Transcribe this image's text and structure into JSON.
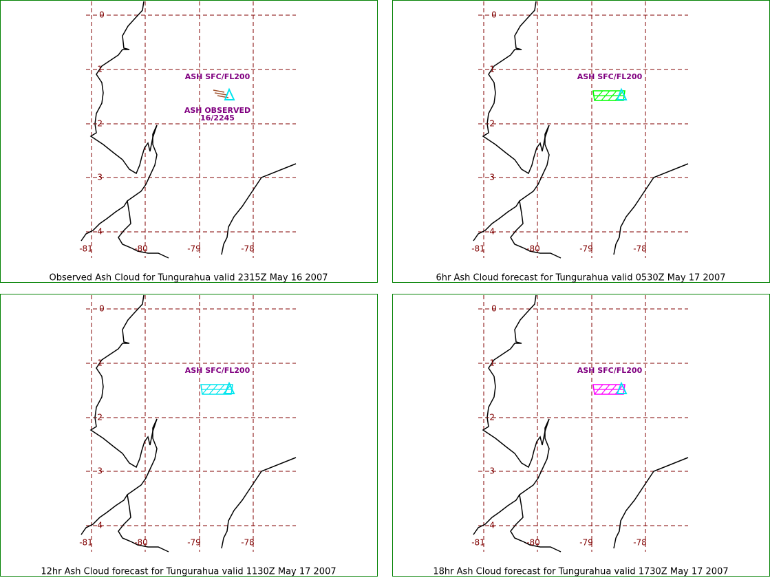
{
  "panels": [
    {
      "caption": "Observed Ash Cloud for Tungurahua valid 2315Z May 16 2007",
      "lat_labels": [
        "0",
        "-1",
        "-2",
        "-3",
        "-4"
      ],
      "lon_labels": [
        "-81",
        "-80",
        "-79",
        "-78"
      ],
      "annotations": [
        "ASH SFC/FL200",
        "ASH OBSERVED",
        "16/2245"
      ]
    },
    {
      "caption": "6hr Ash Cloud forecast for Tungurahua valid 0530Z May 17 2007",
      "lat_labels": [
        "0",
        "-1",
        "-2",
        "-3",
        "-4"
      ],
      "lon_labels": [
        "-81",
        "-80",
        "-79",
        "-78"
      ],
      "annotations": [
        "ASH SFC/FL200"
      ]
    },
    {
      "caption": "12hr Ash Cloud forecast for Tungurahua valid 1130Z May 17 2007",
      "lat_labels": [
        "0",
        "-1",
        "-2",
        "-3",
        "-4"
      ],
      "lon_labels": [
        "-81",
        "-80",
        "-79",
        "-78"
      ],
      "annotations": [
        "ASH SFC/FL200"
      ]
    },
    {
      "caption": "18hr Ash Cloud forecast for Tungurahua valid 1730Z May 17 2007",
      "lat_labels": [
        "0",
        "-1",
        "-2",
        "-3",
        "-4"
      ],
      "lon_labels": [
        "-81",
        "-80",
        "-79",
        "-78"
      ],
      "annotations": [
        "ASH SFC/FL200"
      ]
    }
  ]
}
